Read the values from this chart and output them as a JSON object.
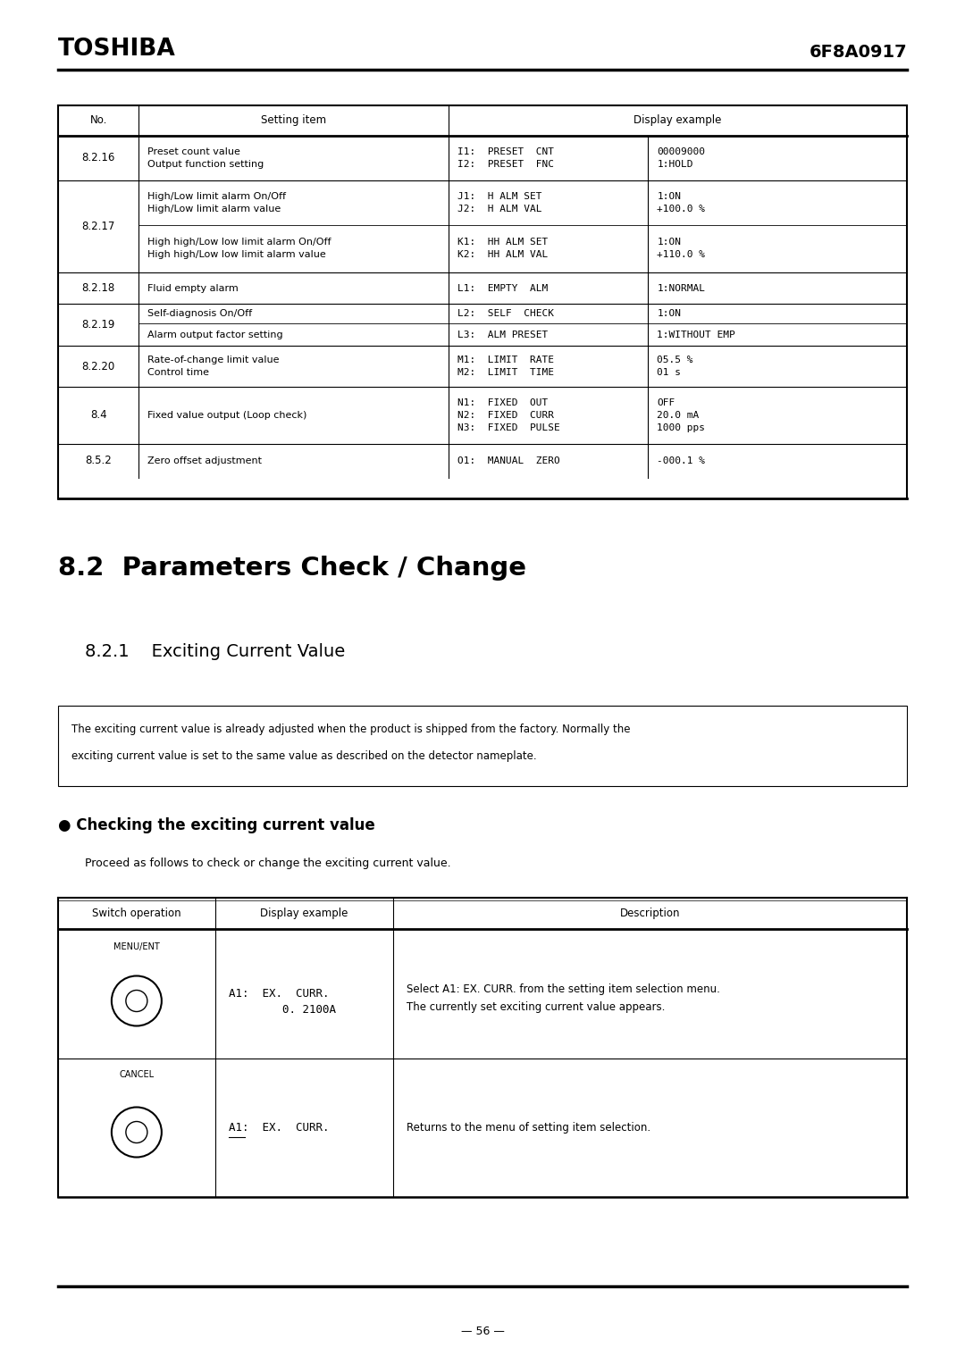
{
  "page_bg": "#ffffff",
  "header_title_left": "TOSHIBA",
  "header_title_right": "6F8A0917",
  "top_table_rows": [
    {
      "no": "8.2.16",
      "setting1": "Preset count value",
      "setting2": "Output function setting",
      "code1": "I1:  PRESET  CNT",
      "code2": "I2:  PRESET  FNC",
      "val1": "00009000",
      "val2": "1:HOLD",
      "split": false
    },
    {
      "no": "8.2.17",
      "setting1": "High/Low limit alarm On/Off",
      "setting2": "High/Low limit alarm value",
      "code1": "J1:  H ALM SET",
      "code2": "J2:  H ALM VAL",
      "val1": "1:ON",
      "val2": "+100.0 %",
      "split": true,
      "setting1b": "High high/Low low limit alarm On/Off",
      "setting2b": "High high/Low low limit alarm value",
      "code1b": "K1:  HH ALM SET",
      "code2b": "K2:  HH ALM VAL",
      "val1b": "1:ON",
      "val2b": "+110.0 %"
    },
    {
      "no": "8.2.18",
      "setting1": "Fluid empty alarm",
      "setting2": "",
      "code1": "L1:  EMPTY  ALM",
      "code2": "",
      "val1": "1:NORMAL",
      "val2": "",
      "split": false
    },
    {
      "no": "8.2.19",
      "setting1": "Self-diagnosis On/Off",
      "setting2": "",
      "code1": "L2:  SELF  CHECK",
      "code2": "",
      "val1": "1:ON",
      "val2": "",
      "split": true,
      "setting1b": "Alarm output factor setting",
      "setting2b": "",
      "code1b": "L3:  ALM PRESET",
      "code2b": "",
      "val1b": "1:WITHOUT EMP",
      "val2b": ""
    },
    {
      "no": "8.2.20",
      "setting1": "Rate-of-change limit value",
      "setting2": "Control time",
      "code1": "M1:  LIMIT  RATE",
      "code2": "M2:  LIMIT  TIME",
      "val1": "05.5 %",
      "val2": "01 s",
      "split": false
    },
    {
      "no": "8.4",
      "setting1": "Fixed value output (Loop check)",
      "setting2": "",
      "code1": "N1:  FIXED  OUT",
      "code2": "N2:  FIXED  CURR",
      "code3": "N3:  FIXED  PULSE",
      "val1": "OFF",
      "val2": "20.0 mA",
      "val3": "1000 pps",
      "split": false,
      "three_lines": true
    },
    {
      "no": "8.5.2",
      "setting1": "Zero offset adjustment",
      "setting2": "",
      "code1": "O1:  MANUAL  ZERO",
      "code2": "",
      "val1": "-000.1 %",
      "val2": "",
      "split": false
    }
  ],
  "section_title": "8.2  Parameters Check / Change",
  "subsection_title": "8.2.1    Exciting Current Value",
  "info_box_text1": "The exciting current value is already adjusted when the product is shipped from the factory. Normally the",
  "info_box_text2": "exciting current value is set to the same value as described on the detector nameplate.",
  "bullet_title": "● Checking the exciting current value",
  "bullet_sub": "Proceed as follows to check or change the exciting current value.",
  "bt_row1_label": "MENU/ENT",
  "bt_row1_disp1": "A1:  EX.  CURR.",
  "bt_row1_disp2": "        0. 2100A",
  "bt_row1_desc1": "Select A1: EX. CURR. from the setting item selection menu.",
  "bt_row1_desc2": "The currently set exciting current value appears.",
  "bt_row2_label": "CANCEL",
  "bt_row2_disp": "A1:  EX.  CURR.",
  "bt_row2_desc": "Returns to the menu of setting item selection.",
  "footer_text": "— 56 —"
}
